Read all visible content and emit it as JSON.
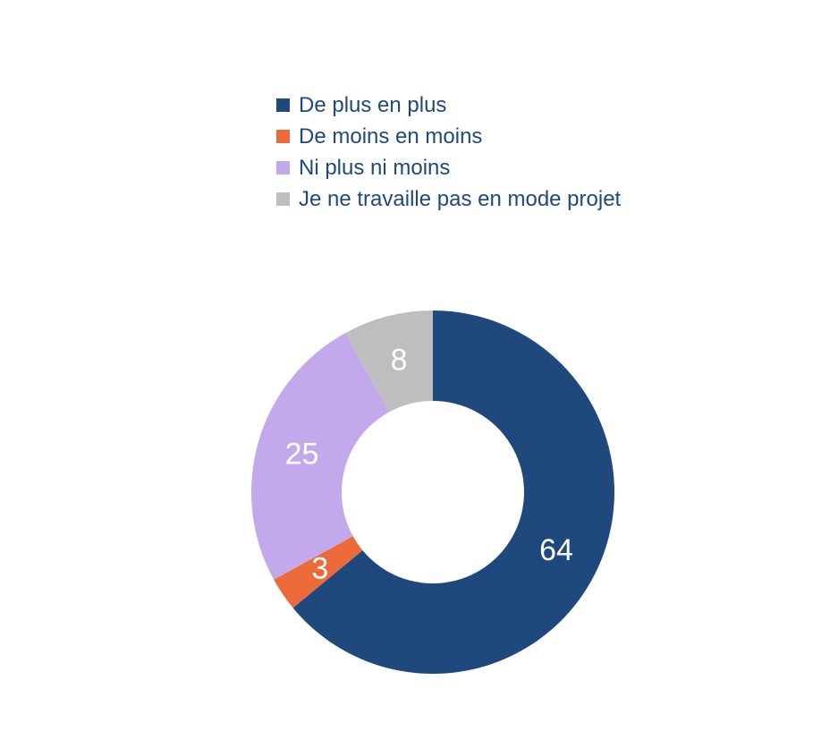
{
  "chart_data": {
    "type": "pie",
    "variant": "donut",
    "categories": [
      "De plus en plus",
      "De moins en moins",
      "Ni plus ni moins",
      "Je ne travaille pas en mode projet"
    ],
    "values": [
      64,
      3,
      25,
      8
    ],
    "colors": [
      "#1F497D",
      "#ED6A3A",
      "#C3A8EC",
      "#BEBEBE"
    ],
    "data_labels": [
      "64",
      "3",
      "25",
      "8"
    ],
    "legend_position": "top",
    "start": "top, clockwise"
  }
}
